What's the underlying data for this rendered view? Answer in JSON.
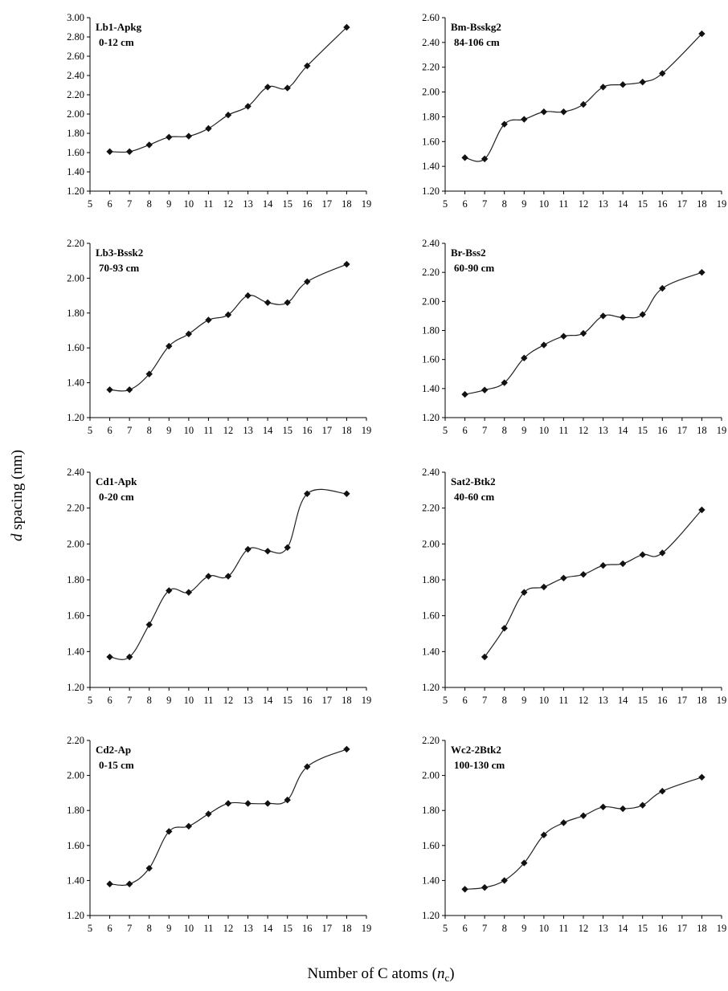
{
  "figure": {
    "y_label_italic": "d",
    "y_label_rest": " spacing (nm)",
    "x_label_main": "Number of C atoms (",
    "x_label_italic": "n",
    "x_label_sub": "c",
    "x_label_end": ")"
  },
  "chart_data": [
    {
      "type": "line",
      "label_line1": "Lb1-Apkg",
      "label_line2": "0-12 cm",
      "x": [
        6,
        7,
        8,
        9,
        10,
        11,
        12,
        13,
        14,
        15,
        16,
        18
      ],
      "values": [
        1.61,
        1.61,
        1.68,
        1.76,
        1.77,
        1.85,
        1.99,
        2.08,
        2.28,
        2.27,
        2.5,
        2.9
      ],
      "xlim": [
        5,
        19
      ],
      "ylim": [
        1.2,
        3.0
      ],
      "xticks": [
        "5",
        "6",
        "7",
        "8",
        "9",
        "10",
        "11",
        "12",
        "13",
        "14",
        "15",
        "16",
        "17",
        "18",
        "19"
      ],
      "yticks": [
        "1.20",
        "1.40",
        "1.60",
        "1.80",
        "2.00",
        "2.20",
        "2.40",
        "2.60",
        "2.80",
        "3.00"
      ],
      "grid": false,
      "marker": "diamond"
    },
    {
      "type": "line",
      "label_line1": "Bm-Bsskg2",
      "label_line2": "84-106 cm",
      "x": [
        6,
        7,
        8,
        9,
        10,
        11,
        12,
        13,
        14,
        15,
        16,
        18
      ],
      "values": [
        1.47,
        1.46,
        1.74,
        1.78,
        1.84,
        1.84,
        1.9,
        2.04,
        2.06,
        2.08,
        2.15,
        2.47
      ],
      "xlim": [
        5,
        19
      ],
      "ylim": [
        1.2,
        2.6
      ],
      "xticks": [
        "5",
        "6",
        "7",
        "8",
        "9",
        "10",
        "11",
        "12",
        "13",
        "14",
        "15",
        "16",
        "17",
        "18",
        "19"
      ],
      "yticks": [
        "1.20",
        "1.40",
        "1.60",
        "1.80",
        "2.00",
        "2.20",
        "2.40",
        "2.60"
      ],
      "grid": false,
      "marker": "diamond"
    },
    {
      "type": "line",
      "label_line1": "Lb3-Bssk2",
      "label_line2": "70-93 cm",
      "x": [
        6,
        7,
        8,
        9,
        10,
        11,
        12,
        13,
        14,
        15,
        16,
        18
      ],
      "values": [
        1.36,
        1.36,
        1.45,
        1.61,
        1.68,
        1.76,
        1.79,
        1.9,
        1.86,
        1.86,
        1.98,
        2.08
      ],
      "xlim": [
        5,
        19
      ],
      "ylim": [
        1.2,
        2.2
      ],
      "xticks": [
        "5",
        "6",
        "7",
        "8",
        "9",
        "10",
        "11",
        "12",
        "13",
        "14",
        "15",
        "16",
        "17",
        "18",
        "19"
      ],
      "yticks": [
        "1.20",
        "1.40",
        "1.60",
        "1.80",
        "2.00",
        "2.20"
      ],
      "grid": false,
      "marker": "diamond"
    },
    {
      "type": "line",
      "label_line1": "Br-Bss2",
      "label_line2": "60-90 cm",
      "x": [
        6,
        7,
        8,
        9,
        10,
        11,
        12,
        13,
        14,
        15,
        16,
        18
      ],
      "values": [
        1.36,
        1.39,
        1.44,
        1.61,
        1.7,
        1.76,
        1.78,
        1.9,
        1.89,
        1.91,
        2.09,
        2.2
      ],
      "xlim": [
        5,
        19
      ],
      "ylim": [
        1.2,
        2.4
      ],
      "xticks": [
        "5",
        "6",
        "7",
        "8",
        "9",
        "10",
        "11",
        "12",
        "13",
        "14",
        "15",
        "16",
        "17",
        "18",
        "19"
      ],
      "yticks": [
        "1.20",
        "1.40",
        "1.60",
        "1.80",
        "2.00",
        "2.20",
        "2.40"
      ],
      "grid": false,
      "marker": "diamond"
    },
    {
      "type": "line",
      "label_line1": "Cd1-Apk",
      "label_line2": "0-20 cm",
      "x": [
        6,
        7,
        8,
        9,
        10,
        11,
        12,
        13,
        14,
        15,
        16,
        18
      ],
      "values": [
        1.37,
        1.37,
        1.55,
        1.74,
        1.73,
        1.82,
        1.82,
        1.97,
        1.96,
        1.98,
        2.28,
        2.28
      ],
      "xlim": [
        5,
        19
      ],
      "ylim": [
        1.2,
        2.4
      ],
      "xticks": [
        "5",
        "6",
        "7",
        "8",
        "9",
        "10",
        "11",
        "12",
        "13",
        "14",
        "15",
        "16",
        "17",
        "18",
        "19"
      ],
      "yticks": [
        "1.20",
        "1.40",
        "1.60",
        "1.80",
        "2.00",
        "2.20",
        "2.40"
      ],
      "grid": false,
      "marker": "diamond"
    },
    {
      "type": "line",
      "label_line1": "Sat2-Btk2",
      "label_line2": "40-60 cm",
      "x": [
        7,
        8,
        9,
        10,
        11,
        12,
        13,
        14,
        15,
        16,
        18
      ],
      "values": [
        1.37,
        1.53,
        1.73,
        1.76,
        1.81,
        1.83,
        1.88,
        1.89,
        1.94,
        1.95,
        2.19
      ],
      "xlim": [
        5,
        19
      ],
      "ylim": [
        1.2,
        2.4
      ],
      "xticks": [
        "5",
        "6",
        "7",
        "8",
        "9",
        "10",
        "11",
        "12",
        "13",
        "14",
        "15",
        "16",
        "17",
        "18",
        "19"
      ],
      "yticks": [
        "1.20",
        "1.40",
        "1.60",
        "1.80",
        "2.00",
        "2.20",
        "2.40"
      ],
      "grid": false,
      "marker": "diamond"
    },
    {
      "type": "line",
      "label_line1": "Cd2-Ap",
      "label_line2": "0-15 cm",
      "x": [
        6,
        7,
        8,
        9,
        10,
        11,
        12,
        13,
        14,
        15,
        16,
        18
      ],
      "values": [
        1.38,
        1.38,
        1.47,
        1.68,
        1.71,
        1.78,
        1.84,
        1.84,
        1.84,
        1.86,
        2.05,
        2.15
      ],
      "xlim": [
        5,
        19
      ],
      "ylim": [
        1.2,
        2.2
      ],
      "xticks": [
        "5",
        "6",
        "7",
        "8",
        "9",
        "10",
        "11",
        "12",
        "13",
        "14",
        "15",
        "16",
        "17",
        "18",
        "19"
      ],
      "yticks": [
        "1.20",
        "1.40",
        "1.60",
        "1.80",
        "2.00",
        "2.20"
      ],
      "grid": false,
      "marker": "diamond"
    },
    {
      "type": "line",
      "label_line1": "Wc2-2Btk2",
      "label_line2": "100-130 cm",
      "x": [
        6,
        7,
        8,
        9,
        10,
        11,
        12,
        13,
        14,
        15,
        16,
        18
      ],
      "values": [
        1.35,
        1.36,
        1.4,
        1.5,
        1.66,
        1.73,
        1.77,
        1.82,
        1.81,
        1.83,
        1.91,
        1.99
      ],
      "xlim": [
        5,
        19
      ],
      "ylim": [
        1.2,
        2.2
      ],
      "xticks": [
        "5",
        "6",
        "7",
        "8",
        "9",
        "10",
        "11",
        "12",
        "13",
        "14",
        "15",
        "16",
        "17",
        "18",
        "19"
      ],
      "yticks": [
        "1.20",
        "1.40",
        "1.60",
        "1.80",
        "2.00",
        "2.20"
      ],
      "grid": false,
      "marker": "diamond"
    }
  ]
}
